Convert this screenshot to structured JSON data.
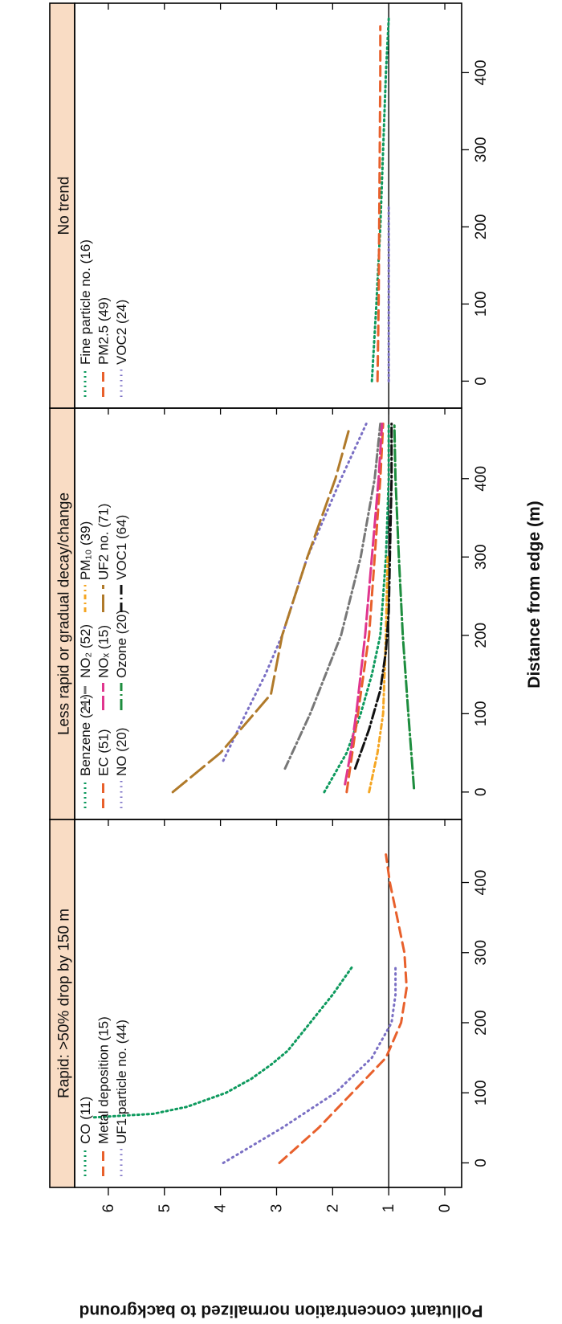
{
  "figure": {
    "x_axis_title": "Distance from edge (m)",
    "y_axis_title": "Pollutant concentration normalized to background"
  },
  "chart_data": [
    {
      "type": "line",
      "title": "Rapid: >50% drop by 150 m",
      "xlabel": "Distance from edge (m)",
      "ylabel": "Pollutant concentration normalized to background",
      "xlim": [
        -35,
        490
      ],
      "ylim": [
        -0.3,
        6.6
      ],
      "x_ticks": [
        0,
        100,
        200,
        300,
        400
      ],
      "y_ticks": [
        0,
        1,
        2,
        3,
        4,
        5,
        6
      ],
      "reference_line_y": 1,
      "grid": false,
      "legend": "top-left",
      "series": [
        {
          "name": "CO (11)",
          "color": "#0e9a5e",
          "dash": "2,4",
          "x": [
            65,
            70,
            80,
            100,
            120,
            140,
            160,
            200,
            240,
            280
          ],
          "y": [
            6.25,
            5.2,
            4.6,
            3.9,
            3.45,
            3.1,
            2.8,
            2.4,
            2.0,
            1.65
          ]
        },
        {
          "name": "Metal deposition (15)",
          "color": "#e8602c",
          "dash": "12,7",
          "x": [
            0,
            50,
            100,
            150,
            200,
            250,
            300,
            350,
            400,
            440
          ],
          "y": [
            2.95,
            2.25,
            1.65,
            1.05,
            0.78,
            0.68,
            0.72,
            0.85,
            0.98,
            1.05
          ]
        },
        {
          "name": "UF1 particle no. (44)",
          "color": "#7a6fc4",
          "dash": "1.5,5",
          "x": [
            0,
            50,
            100,
            150,
            200,
            240,
            280
          ],
          "y": [
            3.95,
            2.9,
            1.95,
            1.3,
            0.95,
            0.88,
            0.88
          ]
        }
      ]
    },
    {
      "type": "line",
      "title": "Less rapid or gradual decay/change",
      "xlabel": "Distance from edge (m)",
      "ylabel": "",
      "xlim": [
        -35,
        490
      ],
      "ylim": [
        -0.3,
        6.6
      ],
      "x_ticks": [
        0,
        100,
        200,
        300,
        400
      ],
      "reference_line_y": 1,
      "grid": false,
      "legend": "top",
      "series": [
        {
          "name": "Benzene (21)",
          "color": "#0e9a5e",
          "dash": "2,4",
          "x": [
            0,
            50,
            100,
            150,
            200,
            300,
            400,
            470
          ],
          "y": [
            2.15,
            1.75,
            1.5,
            1.3,
            1.15,
            1.05,
            1.0,
            1.0
          ]
        },
        {
          "name": "EC (51)",
          "color": "#e8602c",
          "dash": "12,7",
          "x": [
            0,
            100,
            200,
            300,
            400,
            470
          ],
          "y": [
            1.75,
            1.55,
            1.35,
            1.25,
            1.15,
            1.1
          ]
        },
        {
          "name": "NO (20)",
          "color": "#7a6fc4",
          "dash": "1.5,5",
          "x": [
            40,
            100,
            150,
            200,
            300,
            400,
            470
          ],
          "y": [
            3.95,
            3.55,
            3.2,
            2.9,
            2.45,
            1.85,
            1.4
          ]
        },
        {
          "name": "NO₂ (52)",
          "color": "#777777",
          "dash": "10,4,2,4",
          "x": [
            30,
            100,
            200,
            300,
            400,
            470
          ],
          "y": [
            2.85,
            2.4,
            1.85,
            1.5,
            1.25,
            1.15
          ]
        },
        {
          "name": "NOₓ (15)",
          "color": "#e0368e",
          "dash": "18,5",
          "x": [
            10,
            50,
            100,
            200,
            300,
            400,
            470
          ],
          "y": [
            1.78,
            1.68,
            1.58,
            1.42,
            1.3,
            1.18,
            1.12
          ]
        },
        {
          "name": "Ozone (20)",
          "color": "#1d8d3e",
          "dash": "14,4,2,4",
          "x": [
            5,
            100,
            200,
            300,
            400,
            470
          ],
          "y": [
            0.55,
            0.65,
            0.75,
            0.82,
            0.88,
            0.9
          ]
        },
        {
          "name": "PM₁₀ (39)",
          "color": "#f5a623",
          "dash": "6,4,2,4",
          "x": [
            0,
            50,
            100,
            200,
            300
          ],
          "y": [
            1.35,
            1.2,
            1.1,
            1.05,
            1.02
          ]
        },
        {
          "name": "UF2 no. (71)",
          "color": "#b07a2a",
          "dash": "22,7",
          "x": [
            0,
            50,
            125,
            200,
            300,
            400,
            465
          ],
          "y": [
            4.85,
            4.0,
            3.1,
            2.9,
            2.45,
            1.95,
            1.7
          ]
        },
        {
          "name": "VOC1 (64)",
          "color": "#111111",
          "dash": "12,4,2,4",
          "x": [
            30,
            80,
            130,
            180,
            230,
            300,
            400,
            470
          ],
          "y": [
            1.6,
            1.35,
            1.15,
            1.05,
            1.0,
            0.98,
            0.95,
            0.95
          ]
        }
      ]
    },
    {
      "type": "line",
      "title": "No trend",
      "xlabel": "Distance from edge (m)",
      "ylabel": "",
      "xlim": [
        -35,
        490
      ],
      "ylim": [
        -0.3,
        6.6
      ],
      "x_ticks": [
        0,
        100,
        200,
        300,
        400
      ],
      "reference_line_y": 1,
      "grid": false,
      "legend": "top",
      "series": [
        {
          "name": "Fine particle no. (16)",
          "color": "#0e9a5e",
          "dash": "2,4",
          "x": [
            0,
            100,
            200,
            300,
            400,
            470
          ],
          "y": [
            1.3,
            1.22,
            1.15,
            1.1,
            1.05,
            1.0
          ]
        },
        {
          "name": "PM2.5 (49)",
          "color": "#e8602c",
          "dash": "12,7",
          "x": [
            0,
            100,
            200,
            300,
            400,
            460
          ],
          "y": [
            1.2,
            1.18,
            1.17,
            1.16,
            1.15,
            1.15
          ]
        },
        {
          "name": "VOC2 (24)",
          "color": "#7a6fc4",
          "dash": "1.5,5",
          "x": [
            0,
            50,
            100,
            150,
            200,
            230
          ],
          "y": [
            1.0,
            1.0,
            1.0,
            1.0,
            1.0,
            1.0
          ]
        }
      ]
    }
  ]
}
